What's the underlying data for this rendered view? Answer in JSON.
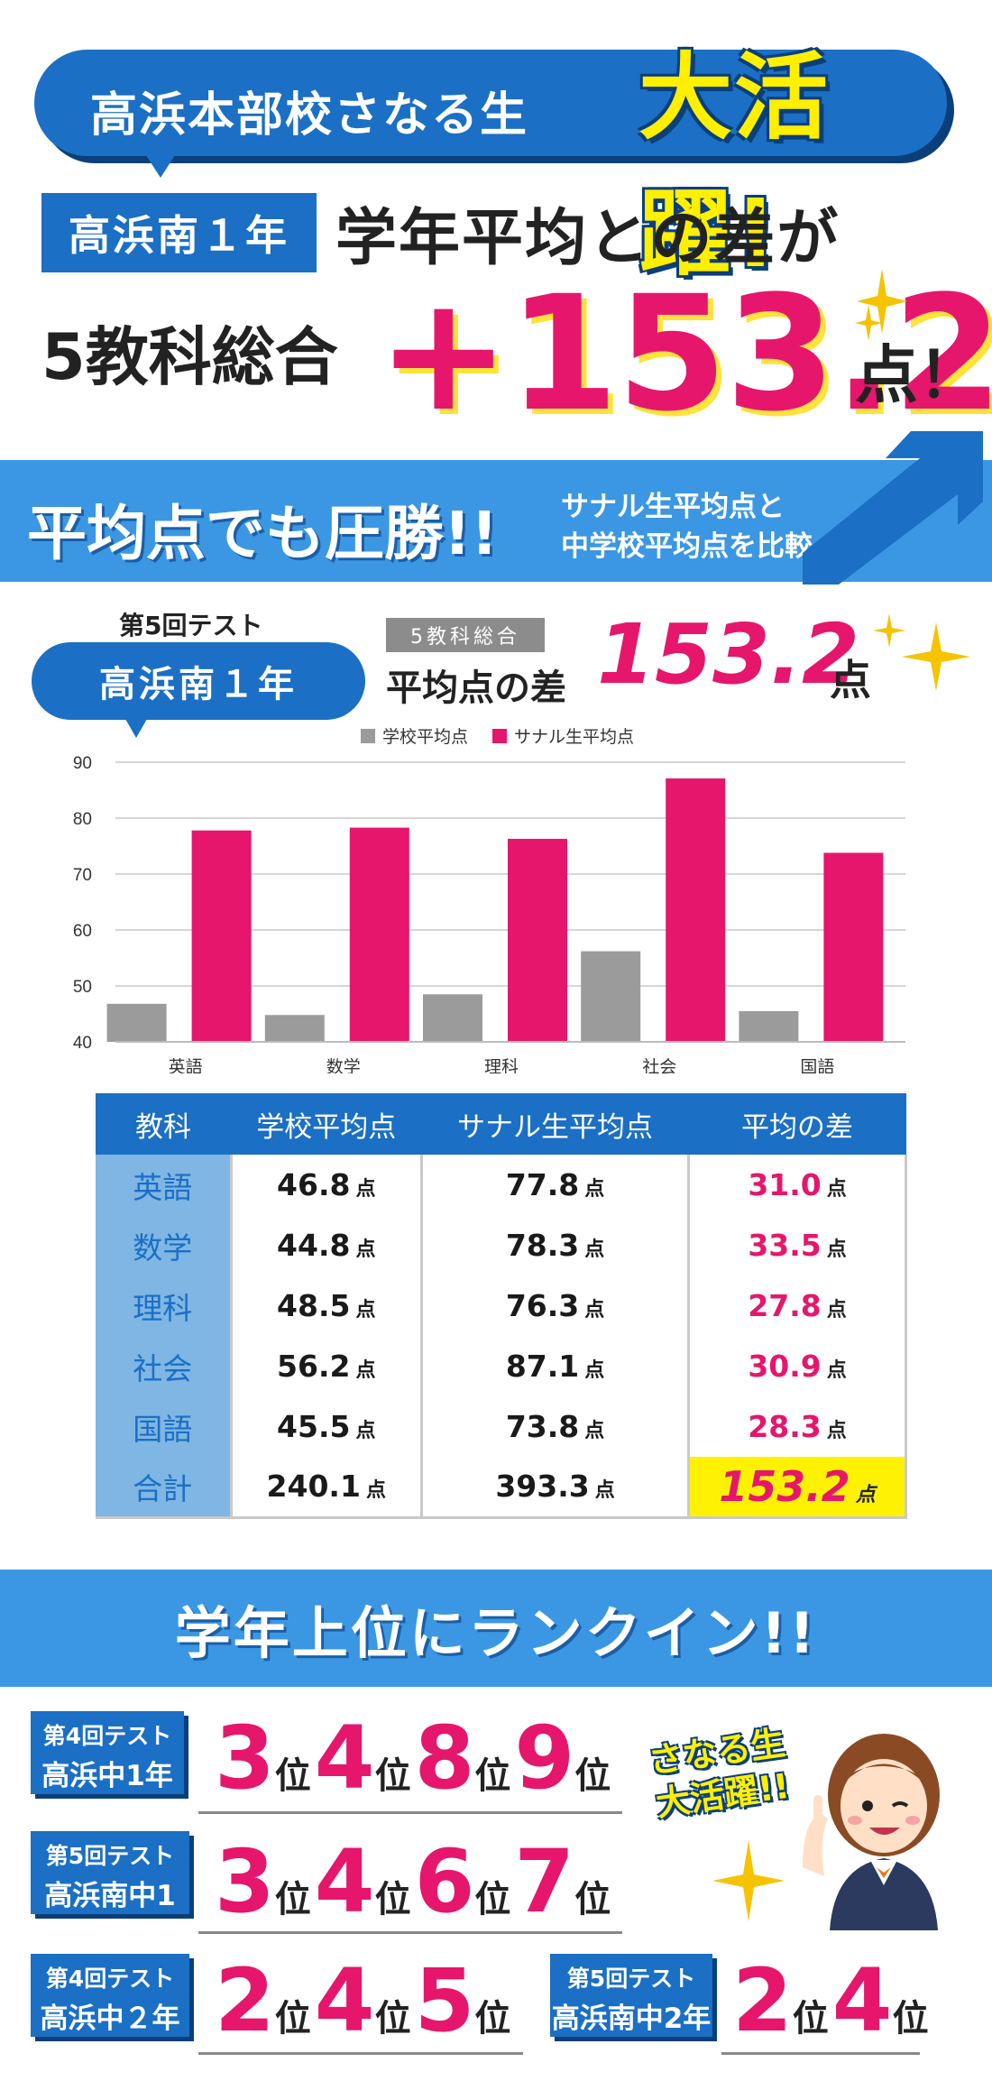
{
  "header": {
    "bubble_text": "高浜本部校さなる生",
    "bubble_big": "大活躍!",
    "grade": "高浜南１年",
    "headline1": "学年平均との差が",
    "headline2_prefix": "5教科総合",
    "big_value": "+153.2",
    "big_unit": "点！"
  },
  "banner": {
    "main": "平均点でも圧勝!!",
    "sub_line1": "サナル生平均点と",
    "sub_line2": "中学校平均点を比較"
  },
  "chart_header": {
    "test": "第5回テスト",
    "school": "高浜南１年",
    "tag": "5教科総合",
    "diff_label": "平均点の差",
    "diff_value": "153.2",
    "diff_unit": "点"
  },
  "chart_data": {
    "type": "bar",
    "categories": [
      "英語",
      "数学",
      "理科",
      "社会",
      "国語"
    ],
    "series": [
      {
        "name": "学校平均点",
        "values": [
          46.8,
          44.8,
          48.5,
          56.2,
          45.5
        ],
        "color": "#9b9b9b"
      },
      {
        "name": "サナル生平均点",
        "values": [
          77.8,
          78.3,
          76.3,
          87.1,
          73.8
        ],
        "color": "#e6166c"
      }
    ],
    "yticks": [
      40,
      50,
      60,
      70,
      80,
      90
    ],
    "ylim": [
      40,
      90
    ],
    "legend": "top-center",
    "grid": true
  },
  "table": {
    "headers": [
      "教科",
      "学校平均点",
      "サナル生平均点",
      "平均の差"
    ],
    "unit": "点",
    "rows": [
      {
        "subject": "英語",
        "school": "46.8",
        "sanaru": "77.8",
        "diff": "31.0"
      },
      {
        "subject": "数学",
        "school": "44.8",
        "sanaru": "78.3",
        "diff": "33.5"
      },
      {
        "subject": "理科",
        "school": "48.5",
        "sanaru": "76.3",
        "diff": "27.8"
      },
      {
        "subject": "社会",
        "school": "56.2",
        "sanaru": "87.1",
        "diff": "30.9"
      },
      {
        "subject": "国語",
        "school": "45.5",
        "sanaru": "73.8",
        "diff": "28.3"
      },
      {
        "subject": "合計",
        "school": "240.1",
        "sanaru": "393.3",
        "diff": "153.2"
      }
    ]
  },
  "ranking": {
    "title": "学年上位にランクイン!!",
    "rank_suffix": "位",
    "badge_line1": "さなる生",
    "badge_line2": "大活躍!!",
    "groups": [
      {
        "test": "第4回テスト",
        "school": "高浜中1年",
        "ranks": [
          "3",
          "4",
          "8",
          "9"
        ]
      },
      {
        "test": "第5回テスト",
        "school": "高浜南中1年",
        "ranks": [
          "3",
          "4",
          "6",
          "7"
        ]
      },
      {
        "test": "第4回テスト",
        "school": "高浜中２年",
        "ranks": [
          "2",
          "4",
          "5"
        ]
      },
      {
        "test": "第5回テスト",
        "school": "高浜南中2年",
        "ranks": [
          "2",
          "4"
        ]
      }
    ]
  },
  "colors": {
    "brand_blue": "#1b6fc4",
    "light_blue": "#3b97e3",
    "pink": "#e6166c",
    "yellow": "#fff200",
    "grey": "#9b9b9b"
  }
}
